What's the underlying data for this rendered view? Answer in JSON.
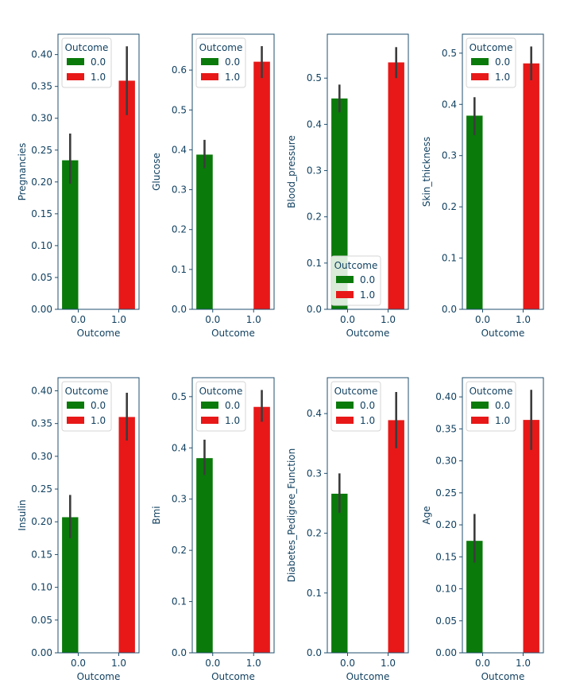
{
  "colors": {
    "outcome_0": "#0a7a0a",
    "outcome_1": "#e81818",
    "axis_text": "#0f3f5f",
    "frame": "#1f4f6f",
    "errbar": "#3c3c3c"
  },
  "chart_data": [
    {
      "type": "bar",
      "xlabel": "Outcome",
      "ylabel": "Pregnancies",
      "categories": [
        "0.0",
        "1.0"
      ],
      "series": [
        {
          "name": "0.0",
          "values": [
            0.234,
            null
          ]
        },
        {
          "name": "1.0",
          "values": [
            null,
            0.359
          ]
        }
      ],
      "error_bars": [
        [
          0.197,
          0.276
        ],
        [
          0.305,
          0.413
        ]
      ],
      "ylim": [
        0,
        0.432
      ],
      "yticks": [
        "0.00",
        "0.05",
        "0.10",
        "0.15",
        "0.20",
        "0.25",
        "0.30",
        "0.35",
        "0.40"
      ],
      "legend": {
        "title": "Outcome",
        "placement": "upper-left"
      }
    },
    {
      "type": "bar",
      "xlabel": "Outcome",
      "ylabel": "Glucose",
      "categories": [
        "0.0",
        "1.0"
      ],
      "series": [
        {
          "name": "0.0",
          "values": [
            0.388,
            null
          ]
        },
        {
          "name": "1.0",
          "values": [
            null,
            0.621
          ]
        }
      ],
      "error_bars": [
        [
          0.354,
          0.425
        ],
        [
          0.58,
          0.66
        ]
      ],
      "ylim": [
        0,
        0.69
      ],
      "yticks": [
        "0.0",
        "0.1",
        "0.2",
        "0.3",
        "0.4",
        "0.5",
        "0.6"
      ],
      "legend": {
        "title": "Outcome",
        "placement": "upper-left"
      }
    },
    {
      "type": "bar",
      "xlabel": "Outcome",
      "ylabel": "Blood_pressure",
      "categories": [
        "0.0",
        "1.0"
      ],
      "series": [
        {
          "name": "0.0",
          "values": [
            0.456,
            null
          ]
        },
        {
          "name": "1.0",
          "values": [
            null,
            0.534
          ]
        }
      ],
      "error_bars": [
        [
          0.426,
          0.486
        ],
        [
          0.5,
          0.567
        ]
      ],
      "ylim": [
        0,
        0.595
      ],
      "yticks": [
        "0.0",
        "0.1",
        "0.2",
        "0.3",
        "0.4",
        "0.5"
      ],
      "legend": {
        "title": "Outcome",
        "placement": "lower-left"
      }
    },
    {
      "type": "bar",
      "xlabel": "Outcome",
      "ylabel": "Skin_thickness",
      "categories": [
        "0.0",
        "1.0"
      ],
      "series": [
        {
          "name": "0.0",
          "values": [
            0.378,
            null
          ]
        },
        {
          "name": "1.0",
          "values": [
            null,
            0.48
          ]
        }
      ],
      "error_bars": [
        [
          0.34,
          0.414
        ],
        [
          0.447,
          0.513
        ]
      ],
      "ylim": [
        0,
        0.537
      ],
      "yticks": [
        "0.0",
        "0.1",
        "0.2",
        "0.3",
        "0.4",
        "0.5"
      ],
      "legend": {
        "title": "Outcome",
        "placement": "upper-left"
      }
    },
    {
      "type": "bar",
      "xlabel": "Outcome",
      "ylabel": "Insulin",
      "categories": [
        "0.0",
        "1.0"
      ],
      "series": [
        {
          "name": "0.0",
          "values": [
            0.207,
            null
          ]
        },
        {
          "name": "1.0",
          "values": [
            null,
            0.36
          ]
        }
      ],
      "error_bars": [
        [
          0.175,
          0.241
        ],
        [
          0.324,
          0.397
        ]
      ],
      "ylim": [
        0,
        0.42
      ],
      "yticks": [
        "0.00",
        "0.05",
        "0.10",
        "0.15",
        "0.20",
        "0.25",
        "0.30",
        "0.35",
        "0.40"
      ],
      "legend": {
        "title": "Outcome",
        "placement": "upper-left"
      }
    },
    {
      "type": "bar",
      "xlabel": "Outcome",
      "ylabel": "Bmi",
      "categories": [
        "0.0",
        "1.0"
      ],
      "series": [
        {
          "name": "0.0",
          "values": [
            0.38,
            null
          ]
        },
        {
          "name": "1.0",
          "values": [
            null,
            0.48
          ]
        }
      ],
      "error_bars": [
        [
          0.347,
          0.416
        ],
        [
          0.451,
          0.513
        ]
      ],
      "ylim": [
        0,
        0.537
      ],
      "yticks": [
        "0.0",
        "0.1",
        "0.2",
        "0.3",
        "0.4",
        "0.5"
      ],
      "legend": {
        "title": "Outcome",
        "placement": "upper-left"
      }
    },
    {
      "type": "bar",
      "xlabel": "Outcome",
      "ylabel": "Diabetes_Pedigree_Function",
      "categories": [
        "0.0",
        "1.0"
      ],
      "series": [
        {
          "name": "0.0",
          "values": [
            0.266,
            null
          ]
        },
        {
          "name": "1.0",
          "values": [
            null,
            0.389
          ]
        }
      ],
      "error_bars": [
        [
          0.234,
          0.3
        ],
        [
          0.342,
          0.436
        ]
      ],
      "ylim": [
        0,
        0.46
      ],
      "yticks": [
        "0.0",
        "0.1",
        "0.2",
        "0.3",
        "0.4"
      ],
      "legend": {
        "title": "Outcome",
        "placement": "upper-left"
      }
    },
    {
      "type": "bar",
      "xlabel": "Outcome",
      "ylabel": "Age",
      "categories": [
        "0.0",
        "1.0"
      ],
      "series": [
        {
          "name": "0.0",
          "values": [
            0.175,
            null
          ]
        },
        {
          "name": "1.0",
          "values": [
            null,
            0.364
          ]
        }
      ],
      "error_bars": [
        [
          0.141,
          0.217
        ],
        [
          0.317,
          0.411
        ]
      ],
      "ylim": [
        0,
        0.43
      ],
      "yticks": [
        "0.00",
        "0.05",
        "0.10",
        "0.15",
        "0.20",
        "0.25",
        "0.30",
        "0.35",
        "0.40"
      ],
      "legend": {
        "title": "Outcome",
        "placement": "upper-left"
      }
    }
  ]
}
